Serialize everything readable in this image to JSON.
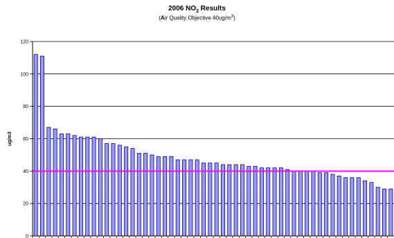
{
  "chart_data": {
    "type": "bar",
    "title_prefix": "2006 NO",
    "title_sub": "2",
    "title_suffix": " Results",
    "subtitle_open": "(",
    "subtitle_bold": "A",
    "subtitle_text": "ir Quality Objective 40ug/m",
    "subtitle_sup": "3",
    "subtitle_close": ")",
    "ylabel": "ug/m3",
    "xlabel": "",
    "ylim": [
      0,
      120
    ],
    "yticks": [
      "0",
      "20",
      "40",
      "60",
      "80",
      "100",
      "120"
    ],
    "grid": true,
    "bar_color": "#9999ff",
    "bar_edge": "#000080",
    "objective_line": {
      "value": 40,
      "color": "#ff00ff"
    },
    "values": [
      112,
      111,
      67,
      66,
      63,
      63,
      62,
      61,
      61,
      61,
      60,
      57,
      57,
      56,
      55,
      54,
      51,
      51,
      50,
      49,
      49,
      49,
      47,
      47,
      47,
      47,
      45,
      45,
      45,
      44,
      44,
      44,
      44,
      43,
      43,
      42,
      42,
      42,
      42,
      41,
      40,
      40,
      40,
      40,
      39,
      39,
      38,
      37,
      36,
      36,
      36,
      34,
      33,
      30,
      29,
      29
    ]
  }
}
